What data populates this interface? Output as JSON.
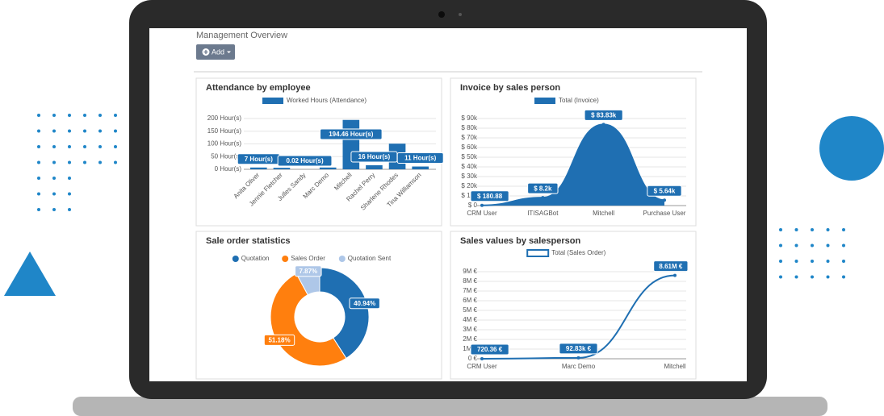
{
  "header": {
    "title": "Management Overview",
    "add_button": "Add"
  },
  "chart_data": [
    {
      "type": "bar",
      "title": "Attendance by employee",
      "categories": [
        "Anita Oliver",
        "Jennie Fletcher",
        "Julles Sandy",
        "Marc Demo",
        "Mitchell",
        "Rachel Perry",
        "Sharlene Rhodes",
        "Tina Williamson"
      ],
      "series": [
        {
          "name": "Worked Hours (Attendance)",
          "color": "#1f6fb2",
          "values": [
            7,
            6,
            0.02,
            7,
            194.46,
            16,
            101,
            11
          ],
          "value_labels": [
            "7 Hour(s)",
            null,
            "0.02 Hour(s)",
            null,
            "194.46 Hour(s)",
            "16 Hour(s)",
            null,
            "11 Hour(s)"
          ]
        }
      ],
      "ylim": [
        0,
        200
      ],
      "yticks": [
        {
          "value": 0,
          "label": "0 Hour(s)"
        },
        {
          "value": 50,
          "label": "50 Hour(s)"
        },
        {
          "value": 100,
          "label": "100 Hour(s)"
        },
        {
          "value": 150,
          "label": "150 Hour(s)"
        },
        {
          "value": 200,
          "label": "200 Hour(s)"
        }
      ],
      "grid": true
    },
    {
      "type": "area",
      "title": "Invoice by sales person",
      "categories": [
        "CRM User",
        "ITISAGBot",
        "Mitchell",
        "Purchase User"
      ],
      "series": [
        {
          "name": "Total (Invoice)",
          "color": "#1f6fb2",
          "values": [
            180.88,
            8200,
            83830,
            5640
          ],
          "value_labels": [
            "$ 180.88",
            "$ 8.2k",
            "$ 83.83k",
            "$ 5.64k"
          ]
        }
      ],
      "ylim": [
        0,
        90000
      ],
      "yticks": [
        {
          "value": 0,
          "label": "$ 0"
        },
        {
          "value": 10000,
          "label": "$ 10k"
        },
        {
          "value": 20000,
          "label": "$ 20k"
        },
        {
          "value": 30000,
          "label": "$ 30k"
        },
        {
          "value": 40000,
          "label": "$ 40k"
        },
        {
          "value": 50000,
          "label": "$ 50k"
        },
        {
          "value": 60000,
          "label": "$ 60k"
        },
        {
          "value": 70000,
          "label": "$ 70k"
        },
        {
          "value": 80000,
          "label": "$ 80k"
        },
        {
          "value": 90000,
          "label": "$ 90k"
        }
      ],
      "grid": true
    },
    {
      "type": "doughnut",
      "title": "Sale order statistics",
      "categories": [
        "Quotation",
        "Sales Order",
        "Quotation Sent"
      ],
      "values": [
        40.94,
        51.18,
        7.87
      ],
      "value_labels": [
        "40.94%",
        "51.18%",
        "7.87%"
      ],
      "colors": [
        "#1f6fb2",
        "#ff7f0e",
        "#aec7e8"
      ]
    },
    {
      "type": "line",
      "title": "Sales values by salesperson",
      "categories": [
        "CRM User",
        "Marc Demo",
        "Mitchell"
      ],
      "series": [
        {
          "name": "Total (Sales Order)",
          "color": "#1f6fb2",
          "values": [
            720.36,
            92830,
            8610000
          ],
          "value_labels": [
            "720.36 €",
            "92.83k €",
            "8.61M €"
          ]
        }
      ],
      "ylim": [
        0,
        9000000
      ],
      "yticks": [
        {
          "value": 0,
          "label": "0 €"
        },
        {
          "value": 1000000,
          "label": "1M €"
        },
        {
          "value": 2000000,
          "label": "2M €"
        },
        {
          "value": 3000000,
          "label": "3M €"
        },
        {
          "value": 4000000,
          "label": "4M €"
        },
        {
          "value": 5000000,
          "label": "5M €"
        },
        {
          "value": 6000000,
          "label": "6M €"
        },
        {
          "value": 7000000,
          "label": "7M €"
        },
        {
          "value": 8000000,
          "label": "8M €"
        },
        {
          "value": 9000000,
          "label": "9M €"
        }
      ],
      "grid": true
    }
  ]
}
